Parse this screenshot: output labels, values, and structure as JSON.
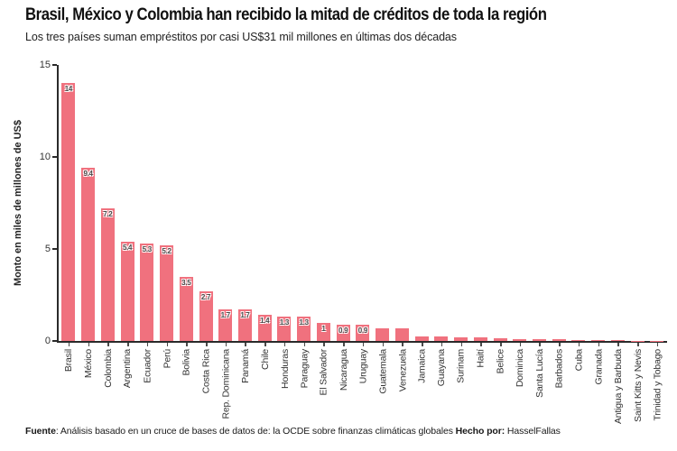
{
  "header": {
    "title": "Brasil, México y Colombia han recibido la mitad de créditos de toda la región",
    "subtitle": "Los tres países suman empréstitos por casi US$31 mil millones en últimas dos décadas"
  },
  "footer": {
    "source_label": "Fuente",
    "source_text": ": Análisis basado en un cruce de bases de datos de: la OCDE sobre finanzas climáticas globales ",
    "credit_label": "Hecho por:",
    "credit_text": " HasselFallas"
  },
  "chart_data": {
    "type": "bar",
    "title": "Brasil, México y Colombia han recibido la mitad de créditos de toda la región",
    "subtitle": "Los tres países suman empréstitos por casi US$31 mil millones en últimas dos décadas",
    "xlabel": "",
    "ylabel": "Monto en miles de millones de US$",
    "ylim": [
      0,
      15
    ],
    "yticks": [
      0,
      5,
      10,
      15
    ],
    "grid": false,
    "legend": false,
    "bar_color": "#F0717E",
    "axis_color": "#2A2A2A",
    "value_label_color": "#4A4A4A",
    "categories": [
      "Brasil",
      "México",
      "Colombia",
      "Argentina",
      "Ecuador",
      "Perú",
      "Bolivia",
      "Costa Rica",
      "Rep. Dominicana",
      "Panamá",
      "Chile",
      "Honduras",
      "Paraguay",
      "El Salvador",
      "Nicaragua",
      "Uruguay",
      "Guatemala",
      "Venezuela",
      "Jamaica",
      "Guayana",
      "Surinam",
      "Haití",
      "Belice",
      "Dominica",
      "Santa Lucía",
      "Barbados",
      "Cuba",
      "Granada",
      "Antigua y Barbuda",
      "Saint Kitts y Nevis",
      "Trinidad y Tobago"
    ],
    "values": [
      14,
      9.4,
      7.2,
      5.4,
      5.3,
      5.2,
      3.5,
      2.7,
      1.7,
      1.7,
      1.4,
      1.3,
      1.3,
      1.0,
      0.9,
      0.9,
      0.7,
      0.7,
      0.25,
      0.25,
      0.2,
      0.2,
      0.15,
      0.12,
      0.1,
      0.08,
      0.07,
      0.06,
      0.04,
      0.02,
      0.01
    ],
    "bar_labels": [
      "14",
      "9.4",
      "7.2",
      "5.4",
      "5.3",
      "5.2",
      "3.5",
      "2.7",
      "1.7",
      "1.7",
      "1.4",
      "1.3",
      "1.3",
      "1",
      "0.9",
      "0.9",
      "",
      "",
      "",
      "",
      "",
      "",
      "",
      "",
      "",
      "",
      "",
      "",
      "",
      "",
      ""
    ]
  }
}
